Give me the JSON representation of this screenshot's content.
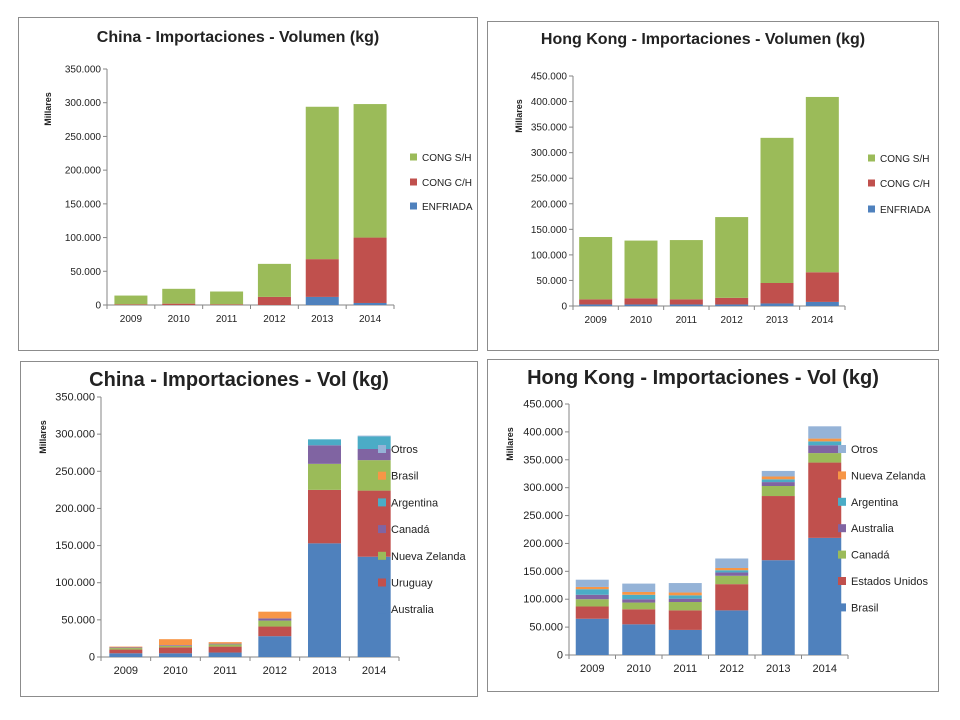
{
  "chart_data": [
    {
      "type": "bar",
      "stacked": true,
      "title": "China - Importaciones - Volumen (kg)",
      "ylabel": "Millares",
      "ylim": [
        0,
        350000
      ],
      "yticks": [
        0,
        50000,
        100000,
        150000,
        200000,
        250000,
        300000,
        350000
      ],
      "ytick_labels": [
        "0",
        "50.000",
        "100.000",
        "150.000",
        "200.000",
        "250.000",
        "300.000",
        "350.000"
      ],
      "categories": [
        "2009",
        "2010",
        "2011",
        "2012",
        "2013",
        "2014"
      ],
      "legend_position": "right",
      "grid": false,
      "series": [
        {
          "name": "ENFRIADA",
          "color": "#4f81bd",
          "values": [
            0,
            0,
            0,
            0,
            12000,
            3000
          ]
        },
        {
          "name": "CONG C/H",
          "color": "#c0504d",
          "values": [
            1000,
            2000,
            1000,
            12000,
            56000,
            97000
          ]
        },
        {
          "name": "CONG S/H",
          "color": "#9bbb59",
          "values": [
            13000,
            22000,
            19000,
            49000,
            226000,
            198000
          ]
        }
      ]
    },
    {
      "type": "bar",
      "stacked": true,
      "title": "Hong Kong - Importaciones - Volumen (kg)",
      "ylabel": "Millares",
      "ylim": [
        0,
        450000
      ],
      "yticks": [
        0,
        50000,
        100000,
        150000,
        200000,
        250000,
        300000,
        350000,
        400000,
        450000
      ],
      "ytick_labels": [
        "0",
        "50.000",
        "100.000",
        "150.000",
        "200.000",
        "250.000",
        "300.000",
        "350.000",
        "400.000",
        "450.000"
      ],
      "categories": [
        "2009",
        "2010",
        "2011",
        "2012",
        "2013",
        "2014"
      ],
      "legend_position": "right",
      "grid": false,
      "series": [
        {
          "name": "ENFRIADA",
          "color": "#4f81bd",
          "values": [
            3000,
            3000,
            3000,
            3000,
            5000,
            8000
          ]
        },
        {
          "name": "CONG C/H",
          "color": "#c0504d",
          "values": [
            10000,
            12000,
            10000,
            13000,
            40000,
            58000
          ]
        },
        {
          "name": "CONG S/H",
          "color": "#9bbb59",
          "values": [
            122000,
            113000,
            116000,
            158000,
            284000,
            343000
          ]
        }
      ]
    },
    {
      "type": "bar",
      "stacked": true,
      "title": "China - Importaciones - Vol (kg)",
      "ylabel": "Millares",
      "ylim": [
        0,
        350000
      ],
      "yticks": [
        0,
        50000,
        100000,
        150000,
        200000,
        250000,
        300000,
        350000
      ],
      "ytick_labels": [
        "0",
        "50.000",
        "100.000",
        "150.000",
        "200.000",
        "250.000",
        "300.000",
        "350.000"
      ],
      "categories": [
        "2009",
        "2010",
        "2011",
        "2012",
        "2013",
        "2014"
      ],
      "legend_position": "right",
      "grid": false,
      "series": [
        {
          "name": "Australia",
          "color": "#4f81bd",
          "values": [
            5000,
            5000,
            6000,
            28000,
            153000,
            135000
          ]
        },
        {
          "name": "Uruguay",
          "color": "#c0504d",
          "values": [
            5000,
            8000,
            8000,
            13000,
            72000,
            89000
          ]
        },
        {
          "name": "Nueva Zelanda",
          "color": "#9bbb59",
          "values": [
            2000,
            2000,
            3000,
            8000,
            35000,
            41000
          ]
        },
        {
          "name": "Canadá",
          "color": "#8064a2",
          "values": [
            1000,
            1000,
            1000,
            3000,
            25000,
            15000
          ]
        },
        {
          "name": "Argentina",
          "color": "#4bacc6",
          "values": [
            0,
            0,
            0,
            0,
            8000,
            17000
          ]
        },
        {
          "name": "Brasil",
          "color": "#f79646",
          "values": [
            1000,
            8000,
            2000,
            9000,
            0,
            0
          ]
        },
        {
          "name": "Otros",
          "color": "#95b3d7",
          "values": [
            0,
            0,
            0,
            0,
            0,
            1000
          ]
        }
      ]
    },
    {
      "type": "bar",
      "stacked": true,
      "title": "Hong Kong - Importaciones - Vol (kg)",
      "ylabel": "Millares",
      "ylim": [
        0,
        450000
      ],
      "yticks": [
        0,
        50000,
        100000,
        150000,
        200000,
        250000,
        300000,
        350000,
        400000,
        450000
      ],
      "ytick_labels": [
        "0",
        "50.000",
        "100.000",
        "150.000",
        "200.000",
        "250.000",
        "300.000",
        "350.000",
        "400.000",
        "450.000"
      ],
      "categories": [
        "2009",
        "2010",
        "2011",
        "2012",
        "2013",
        "2014"
      ],
      "legend_position": "right",
      "grid": false,
      "series": [
        {
          "name": "Brasil",
          "color": "#4f81bd",
          "values": [
            65000,
            55000,
            45000,
            80000,
            170000,
            210000
          ]
        },
        {
          "name": "Estados Unidos",
          "color": "#c0504d",
          "values": [
            22000,
            27000,
            35000,
            47000,
            115000,
            135000
          ]
        },
        {
          "name": "Canadá",
          "color": "#9bbb59",
          "values": [
            13000,
            12000,
            15000,
            15000,
            18000,
            17000
          ]
        },
        {
          "name": "Australia",
          "color": "#8064a2",
          "values": [
            8000,
            6000,
            6000,
            6000,
            7000,
            14000
          ]
        },
        {
          "name": "Argentina",
          "color": "#4bacc6",
          "values": [
            10000,
            8000,
            6000,
            4000,
            5000,
            7000
          ]
        },
        {
          "name": "Nueva Zelanda",
          "color": "#f79646",
          "values": [
            4000,
            5000,
            5000,
            4000,
            5000,
            5000
          ]
        },
        {
          "name": "Otros",
          "color": "#95b3d7",
          "values": [
            13000,
            15000,
            17000,
            17000,
            10000,
            22000
          ]
        }
      ]
    }
  ]
}
